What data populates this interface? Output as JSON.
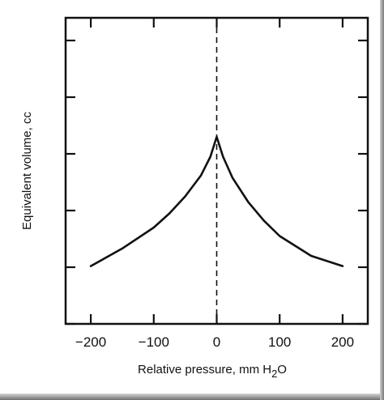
{
  "chart_data": {
    "type": "line",
    "xlabel": "Relative pressure, mm H",
    "xlabel_subscript": "2",
    "xlabel_suffix": "O",
    "ylabel": "Equivalent volume, cc",
    "xlim": [
      -240,
      240
    ],
    "x_ticks": [
      -200,
      -100,
      0,
      100,
      200
    ],
    "x_tick_labels": [
      "−200",
      "−100",
      "0",
      "100",
      "200"
    ],
    "y_ticks": [
      0,
      1,
      2,
      3,
      4,
      5
    ],
    "y_tick_labels": [],
    "ylim": [
      0,
      5.4
    ],
    "vertical_reference_line": {
      "x": 0,
      "style": "dashed"
    },
    "grid": false,
    "series": [
      {
        "x": [
          -200,
          -150,
          -100,
          -75,
          -50,
          -25,
          -10,
          0,
          10,
          25,
          50,
          75,
          100,
          150,
          200
        ],
        "y": [
          1.02,
          1.33,
          1.7,
          1.95,
          2.25,
          2.62,
          2.95,
          3.3,
          2.95,
          2.58,
          2.15,
          1.82,
          1.55,
          1.2,
          1.02
        ]
      }
    ]
  }
}
